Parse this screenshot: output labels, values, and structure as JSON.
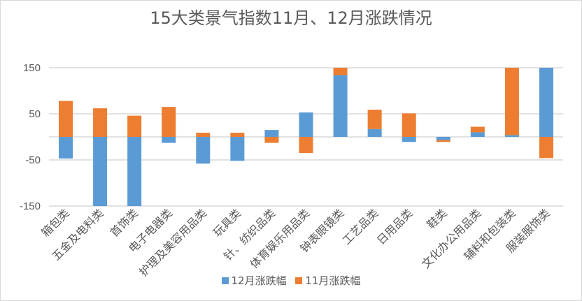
{
  "chart_data": {
    "type": "bar",
    "stacked": true,
    "title": "15大类景气指数11月、12月涨跌情况",
    "categories": [
      "箱包类",
      "五金及电料类",
      "首饰类",
      "电子电器类",
      "护理及美容用品类",
      "玩具类",
      "针、纺织品类",
      "体育娱乐用品类",
      "钟表眼镜类",
      "工艺品类",
      "日用品类",
      "鞋类",
      "文化办公用品类",
      "辅料和包装类",
      "服装服饰类"
    ],
    "series": [
      {
        "name": "12月涨跌幅",
        "color": "#5b9bd5",
        "values": [
          -47,
          -160,
          -160,
          -13,
          -58,
          -52,
          15,
          53,
          134,
          17,
          -11,
          -7,
          10,
          4,
          160
        ]
      },
      {
        "name": "11月涨跌幅",
        "color": "#ed7d31",
        "values": [
          78,
          62,
          46,
          65,
          9,
          9,
          -13,
          -35,
          20,
          42,
          51,
          -4,
          12,
          160,
          -46
        ]
      }
    ],
    "yticks": [
      150,
      50,
      -50,
      -150
    ],
    "ylim": [
      -150,
      150
    ],
    "grid": true,
    "legend": "bottom"
  }
}
